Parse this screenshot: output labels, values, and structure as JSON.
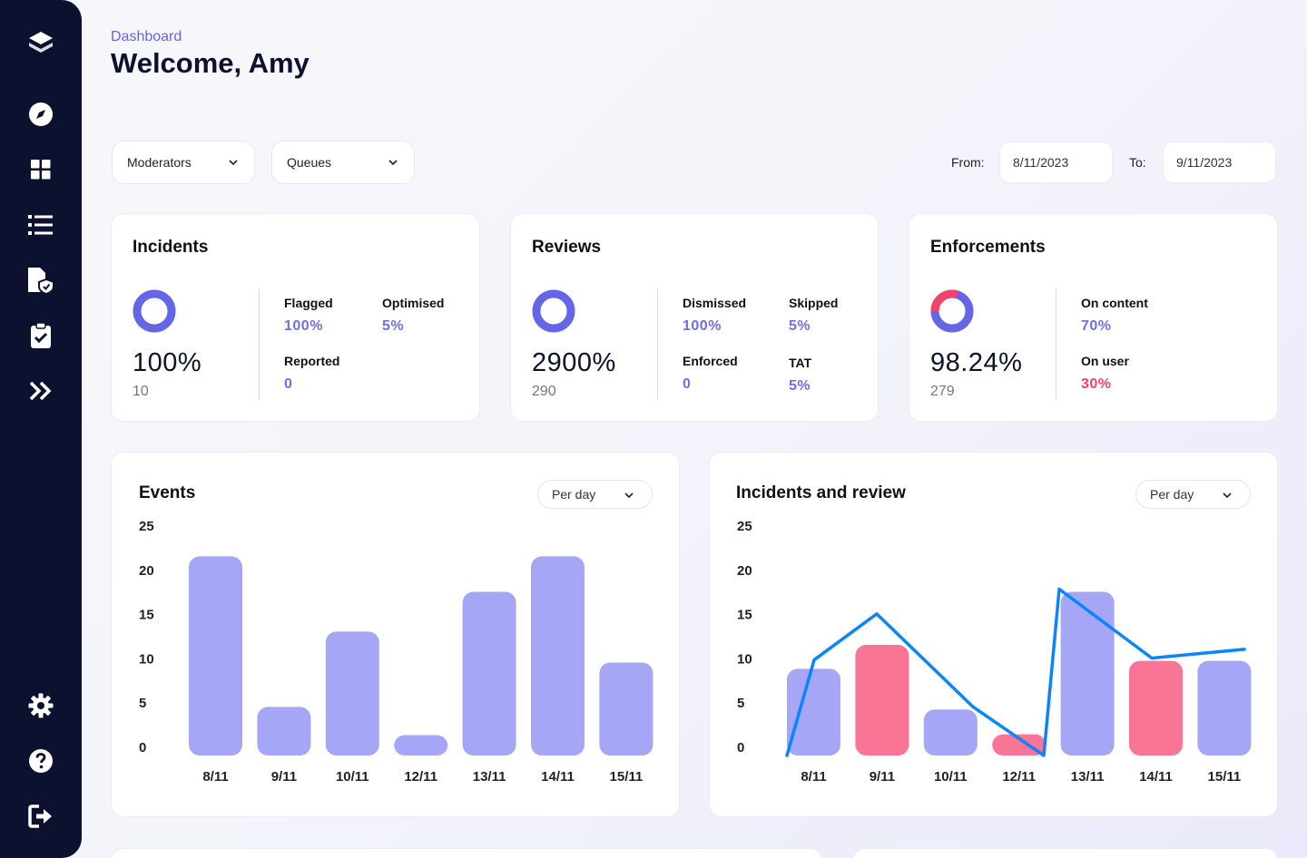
{
  "header": {
    "breadcrumb": "Dashboard",
    "title": "Welcome, Amy"
  },
  "filters": {
    "moderators": "Moderators",
    "queues": "Queues",
    "from_label": "From:",
    "from_value": "8/11/2023",
    "to_label": "To:",
    "to_value": "9/11/2023"
  },
  "sidebar": {
    "icons": [
      "logo-icon",
      "compass-icon",
      "grid-icon",
      "list-icon",
      "shield-file-icon",
      "clipboard-check-icon",
      "expand-icon",
      "gear-icon",
      "help-icon",
      "logout-icon"
    ]
  },
  "incidents": {
    "title": "Incidents",
    "percent": "100%",
    "count": "10",
    "stats": [
      {
        "label": "Flagged",
        "value": "100%"
      },
      {
        "label": "Optimised",
        "value": "5%"
      },
      {
        "label": "Reported",
        "value": "0"
      }
    ]
  },
  "reviews": {
    "title": "Reviews",
    "percent": "2900%",
    "count": "290",
    "stats": [
      {
        "label": "Dismissed",
        "value": "100%"
      },
      {
        "label": "Skipped",
        "value": "5%"
      },
      {
        "label": "Enforced",
        "value": "0"
      },
      {
        "label": "TAT",
        "value": "5%"
      }
    ]
  },
  "enforcements": {
    "title": "Enforcements",
    "percent": "98.24%",
    "count": "279",
    "stats": [
      {
        "label": "On content",
        "value": "70%"
      },
      {
        "label": "On user",
        "value": "30%"
      }
    ]
  },
  "events": {
    "title": "Events",
    "period": "Per day"
  },
  "incidents_review": {
    "title": "Incidents and review",
    "period": "Per day"
  },
  "colors": {
    "accent": "#6466e8",
    "bar": "#a5a6f6",
    "bar_alt": "#f87596",
    "line": "#0a84ff",
    "sidebar": "#0d1130",
    "negative": "#f2426e"
  },
  "chart_data": [
    {
      "type": "bar",
      "title": "Events",
      "categories": [
        "8/11",
        "9/11",
        "10/11",
        "12/11",
        "13/11",
        "14/11",
        "15/11"
      ],
      "values": [
        22.5,
        5.5,
        14,
        2.3,
        18.5,
        22.5,
        10.5
      ],
      "ylim": [
        0,
        25
      ],
      "yticks": [
        25,
        20,
        15,
        10,
        5,
        0
      ]
    },
    {
      "type": "bar",
      "title": "Incidents and review",
      "categories": [
        "8/11",
        "9/11",
        "10/11",
        "12/11",
        "13/11",
        "14/11",
        "15/11"
      ],
      "values": [
        9.8,
        12.5,
        5.2,
        2.4,
        18.5,
        10.7,
        10.7
      ],
      "highlight": [
        false,
        true,
        false,
        true,
        false,
        true,
        false
      ],
      "ylim": [
        0,
        25
      ],
      "yticks": [
        25,
        20,
        15,
        10,
        5,
        0
      ],
      "line_values": [
        0,
        10.8,
        16,
        5.5,
        0,
        18.8,
        11,
        12
      ]
    }
  ]
}
